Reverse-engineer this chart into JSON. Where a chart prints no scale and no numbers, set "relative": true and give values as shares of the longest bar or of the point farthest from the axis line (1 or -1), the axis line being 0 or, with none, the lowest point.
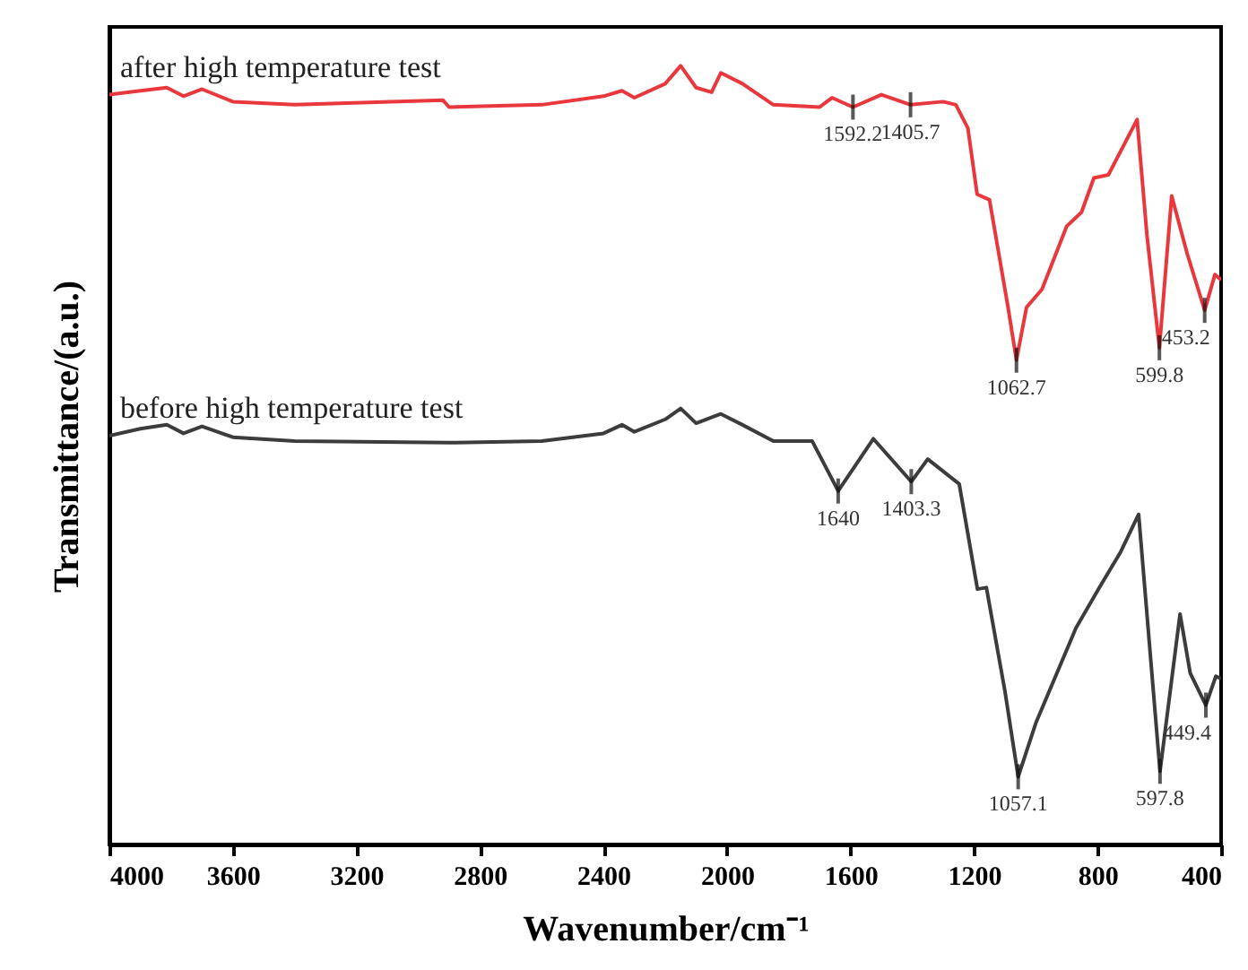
{
  "chart_data": {
    "type": "line",
    "relative": true,
    "xlabel": "Wavenumber/cm⁻¹",
    "ylabel": "Transmittance/(a.u.)",
    "xlim": [
      4000,
      400
    ],
    "xticks": [
      4000,
      3600,
      3200,
      2800,
      2400,
      2000,
      1600,
      1200,
      800,
      400
    ],
    "grid": false,
    "series": [
      {
        "name": "after high temperature test",
        "color": "#e8383d",
        "x": [
          4000,
          3900,
          3814,
          3760,
          3700,
          3600,
          3400,
          2920,
          2900,
          2600,
          2400,
          2340,
          2300,
          2200,
          2150,
          2100,
          2050,
          2020,
          1950,
          1850,
          1700,
          1660,
          1592.2,
          1500,
          1405.7,
          1300,
          1259,
          1220,
          1190,
          1150,
          1120,
          1090,
          1062.7,
          1030,
          980,
          900,
          852,
          812,
          765,
          672,
          640,
          599.8,
          560,
          510,
          453.2,
          420,
          400
        ],
        "values": [
          0.963,
          0.968,
          0.972,
          0.961,
          0.97,
          0.954,
          0.95,
          0.956,
          0.947,
          0.95,
          0.961,
          0.968,
          0.959,
          0.977,
          1,
          0.972,
          0.966,
          0.991,
          0.977,
          0.95,
          0.947,
          0.959,
          0.947,
          0.963,
          0.95,
          0.954,
          0.95,
          0.92,
          0.835,
          0.828,
          0.759,
          0.69,
          0.622,
          0.69,
          0.713,
          0.794,
          0.812,
          0.856,
          0.86,
          0.931,
          0.782,
          0.638,
          0.833,
          0.759,
          0.686,
          0.732,
          0.725
        ]
      },
      {
        "name": "before high temperature test",
        "color": "#3c3c3c",
        "x": [
          4000,
          3900,
          3814,
          3760,
          3700,
          3600,
          3400,
          2900,
          2600,
          2400,
          2340,
          2300,
          2200,
          2150,
          2100,
          2020,
          1950,
          1850,
          1724,
          1640,
          1526,
          1403.3,
          1350,
          1248,
          1189,
          1160,
          1100,
          1057.1,
          1000,
          870,
          794,
          725,
          667,
          597.8,
          533,
          500,
          449.4,
          417,
          400
        ],
        "values": [
          0.525,
          0.534,
          0.539,
          0.528,
          0.537,
          0.523,
          0.518,
          0.516,
          0.518,
          0.528,
          0.539,
          0.53,
          0.546,
          0.56,
          0.541,
          0.553,
          0.539,
          0.518,
          0.518,
          0.454,
          0.521,
          0.466,
          0.495,
          0.463,
          0.328,
          0.33,
          0.197,
          0.087,
          0.156,
          0.278,
          0.33,
          0.376,
          0.424,
          0.094,
          0.296,
          0.22,
          0.179,
          0.216,
          0.213
        ]
      }
    ],
    "annotations": [
      {
        "text": "1592.2",
        "x": 1592.2,
        "y": 0.947
      },
      {
        "text": "1405.7",
        "x": 1405.7,
        "y": 0.95
      },
      {
        "text": "1062.7",
        "x": 1062.7,
        "y": 0.622
      },
      {
        "text": "599.8",
        "x": 599.8,
        "y": 0.638
      },
      {
        "text": "453.2",
        "x": 453.2,
        "y": 0.686
      },
      {
        "text": "1640",
        "x": 1640,
        "y": 0.454
      },
      {
        "text": "1403.3",
        "x": 1403.3,
        "y": 0.466
      },
      {
        "text": "1057.1",
        "x": 1057.1,
        "y": 0.087
      },
      {
        "text": "597.8",
        "x": 597.8,
        "y": 0.094
      },
      {
        "text": "449.4",
        "x": 449.4,
        "y": 0.179
      }
    ]
  }
}
